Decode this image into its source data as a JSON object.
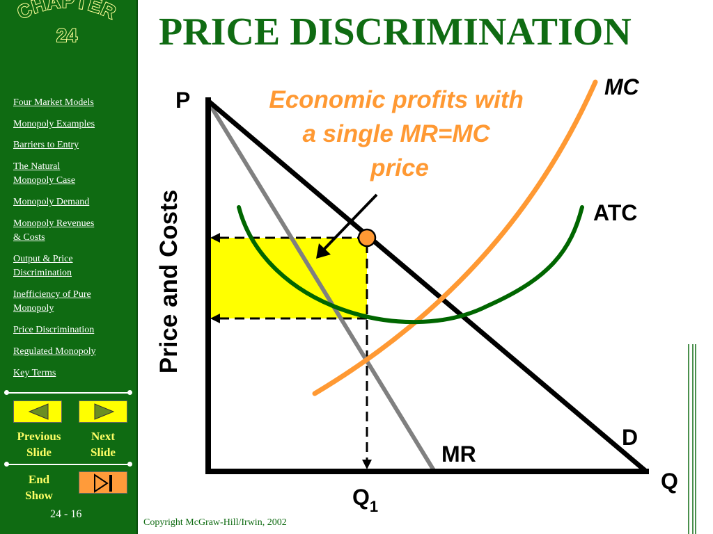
{
  "slide": {
    "title": "PRICE DISCRIMINATION",
    "copyright": "Copyright McGraw-Hill/Irwin,  2002",
    "page_number": "24 - 16"
  },
  "chapter_badge": {
    "word": "CHAPTER",
    "number": "24"
  },
  "sidebar": {
    "items": [
      {
        "label": "Four Market Models"
      },
      {
        "label": "Monopoly Examples"
      },
      {
        "label": "Barriers to Entry"
      },
      {
        "label": "The Natural\nMonopoly Case"
      },
      {
        "label": "Monopoly Demand"
      },
      {
        "label": "Monopoly Revenues\n& Costs"
      },
      {
        "label": "Output & Price\nDiscrimination"
      },
      {
        "label": "Inefficiency of Pure\nMonopoly"
      },
      {
        "label": "Price Discrimination"
      },
      {
        "label": "Regulated Monopoly"
      },
      {
        "label": "Key Terms"
      }
    ],
    "previous_label": "Previous\nSlide",
    "next_label": "Next\nSlide",
    "end_label": "End\nShow"
  },
  "diagram": {
    "y_axis_letter": "P",
    "x_axis_letter": "Q",
    "y_axis_title": "Price and Costs",
    "curve_labels": {
      "mc": "MC",
      "atc": "ATC",
      "d": "D",
      "mr": "MR"
    },
    "quantity_label": "Q",
    "quantity_subscript": "1",
    "annotation": "Economic profits with\na single MR=MC\nprice",
    "colors": {
      "demand": "#000000",
      "mr": "#808080",
      "mc": "#ff9933",
      "atc": "#006600",
      "profit_area": "#ffff00",
      "annotation_text": "#ff9933",
      "title": "#0f6b12"
    }
  }
}
